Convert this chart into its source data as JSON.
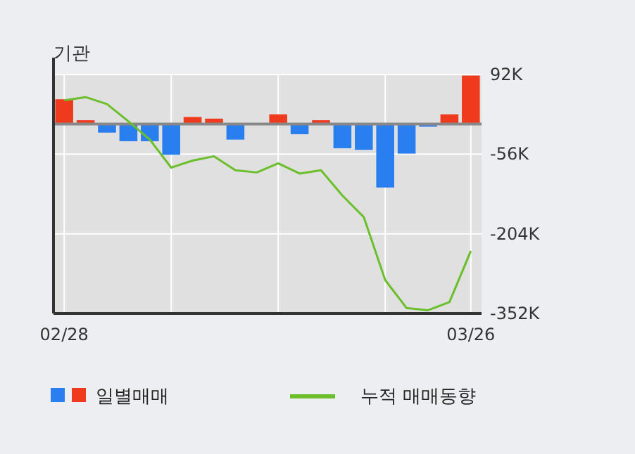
{
  "chart_data": {
    "type": "bar",
    "title": "기관",
    "categories": [
      "02/28",
      null,
      null,
      null,
      null,
      null,
      null,
      null,
      null,
      null,
      null,
      null,
      null,
      null,
      null,
      null,
      null,
      null,
      null,
      "03/26"
    ],
    "series": [
      {
        "name": "일별매매",
        "colors": [
          "#f03a1e",
          "#f03a1e",
          "#2a7ff0",
          "#2a7ff0",
          "#2a7ff0",
          "#2a7ff0",
          "#f03a1e",
          "#f03a1e",
          "#2a7ff0",
          "#f03a1e",
          "#f03a1e",
          "#2a7ff0",
          "#f03a1e",
          "#2a7ff0",
          "#2a7ff0",
          "#2a7ff0",
          "#2a7ff0",
          "#2a7ff0",
          "#f03a1e",
          "#f03a1e"
        ],
        "values": [
          46000,
          7000,
          -16000,
          -32000,
          -32000,
          -57000,
          13000,
          10000,
          -29000,
          0,
          18000,
          -19000,
          7000,
          -45000,
          -48000,
          -118000,
          -55000,
          -5000,
          18000,
          90000
        ]
      },
      {
        "name": "누적 매매동향",
        "type": "line",
        "color": "#6abf2a",
        "values": [
          44000,
          50000,
          37000,
          5000,
          -29000,
          -81000,
          -68000,
          -60000,
          -86000,
          -90000,
          -73000,
          -92000,
          -86000,
          -133000,
          -173000,
          -290000,
          -342000,
          -346000,
          -331000,
          -236000
        ]
      }
    ],
    "ylim": [
      -352000,
      92000
    ],
    "yticks": [
      {
        "value": 92000,
        "label": "92K"
      },
      {
        "value": -56000,
        "label": "-56K"
      },
      {
        "value": -204000,
        "label": "-204K"
      },
      {
        "value": -352000,
        "label": "-352K"
      }
    ],
    "grid": true,
    "legend": "bottom"
  }
}
